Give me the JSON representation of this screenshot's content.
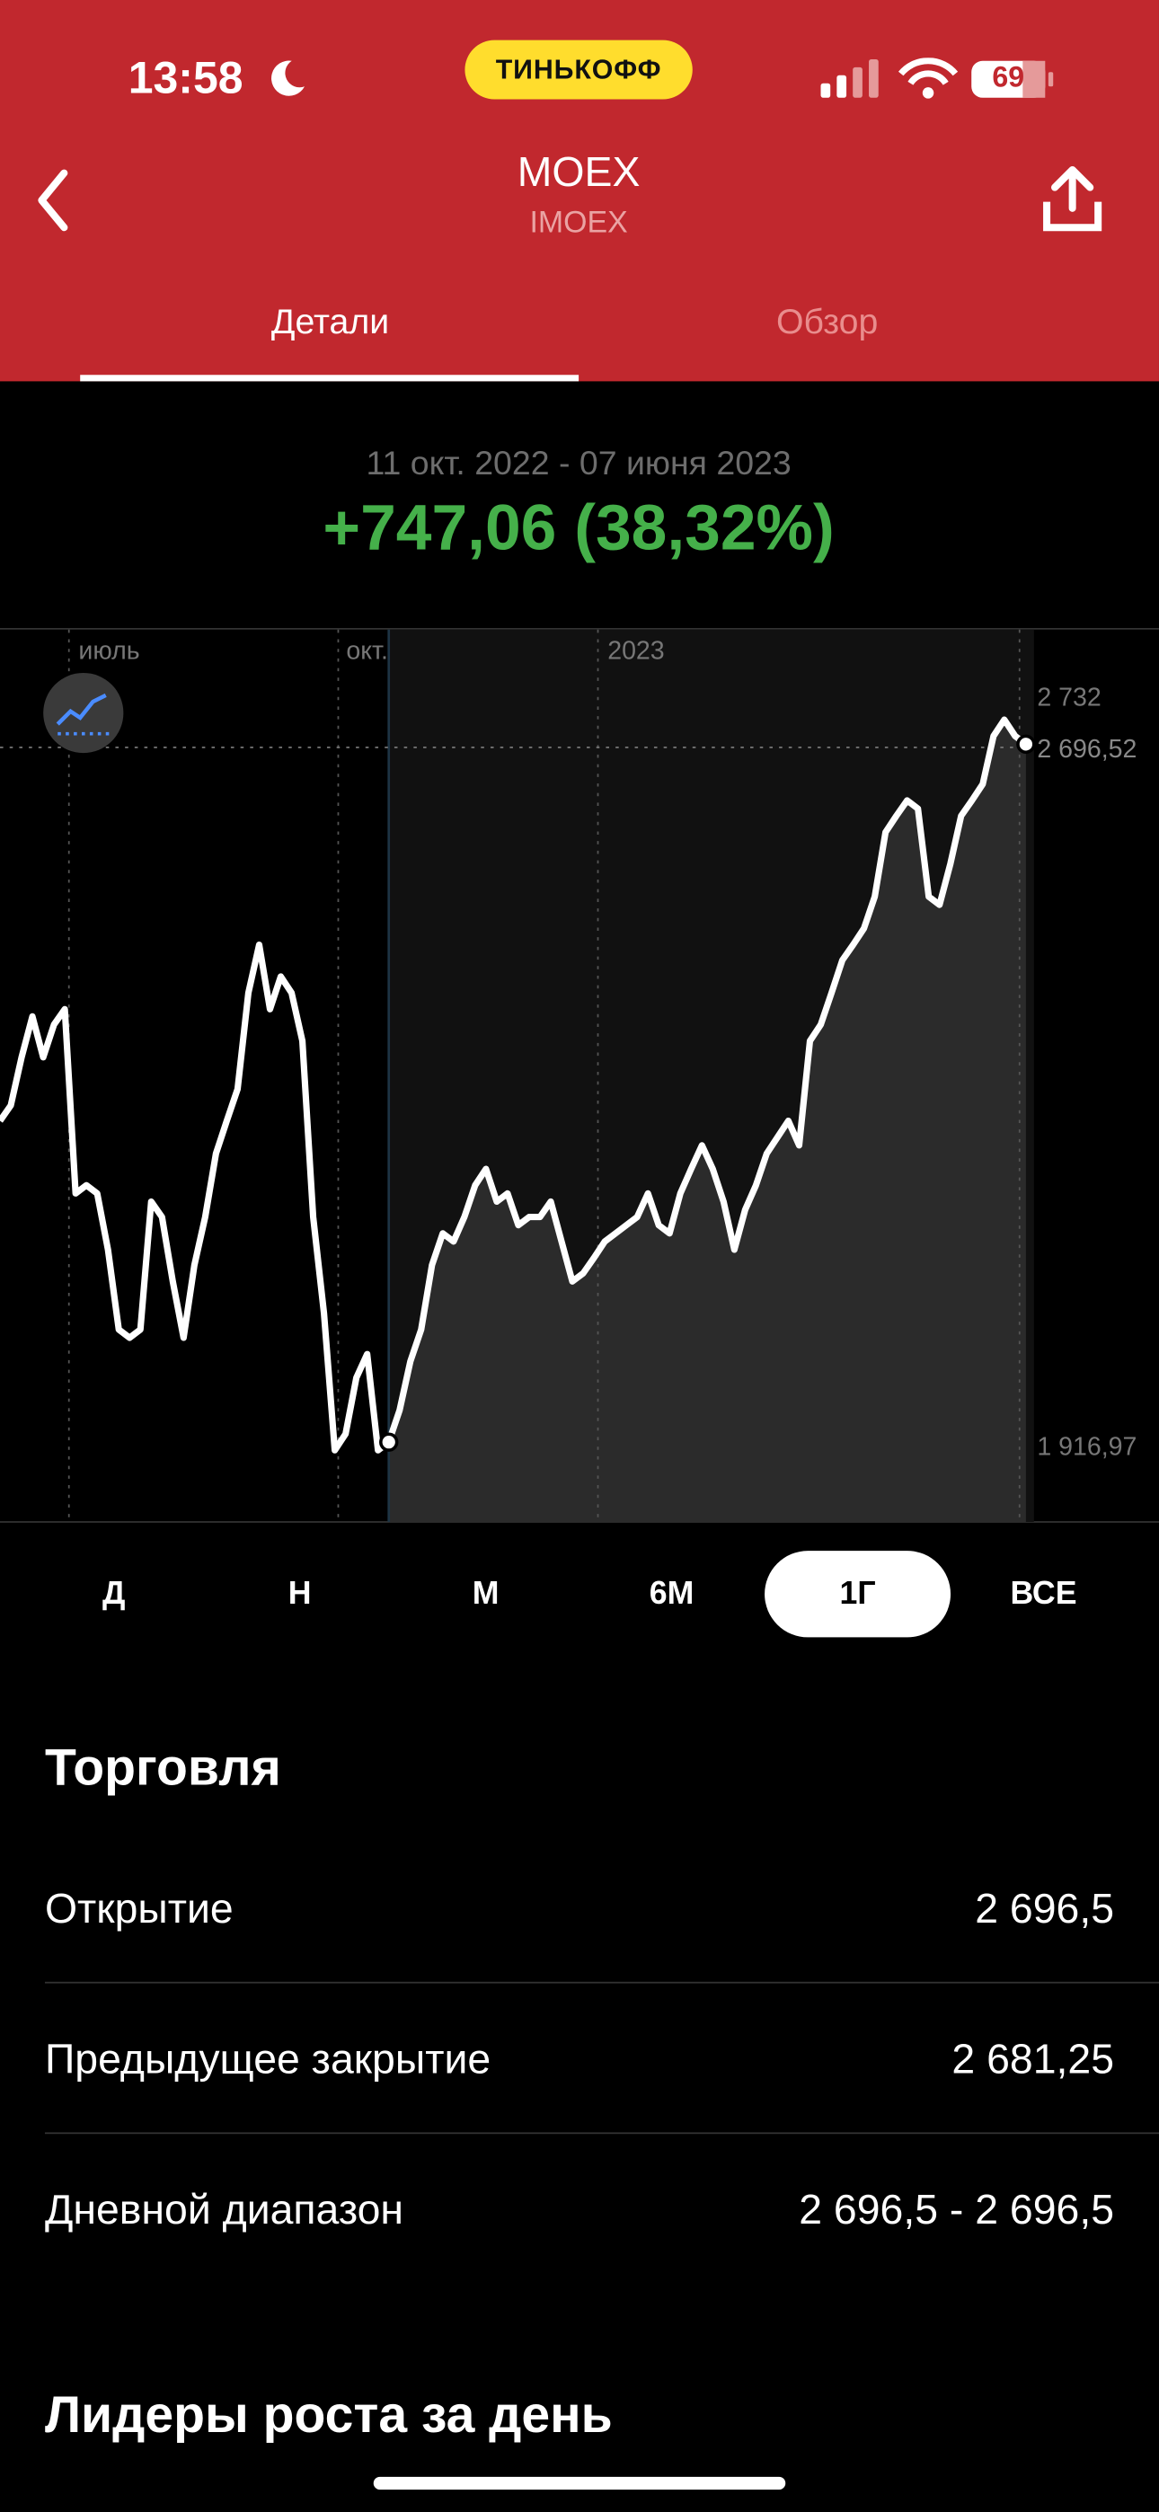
{
  "status_bar": {
    "time": "13:58",
    "brand": "ТИНЬКОФФ",
    "battery": "69"
  },
  "header": {
    "title": "MOEX",
    "subtitle": "IMOEX"
  },
  "tabs": [
    {
      "label": "Детали",
      "active": true
    },
    {
      "label": "Обзор",
      "active": false
    }
  ],
  "summary": {
    "period": "11 окт. 2022 - 07 июня 2023",
    "change": "+747,06 (38,32%)"
  },
  "chart_data": {
    "type": "line",
    "x_labels": [
      "июль",
      "окт.",
      "2023"
    ],
    "values": [
      2285,
      2302,
      2355,
      2400,
      2355,
      2391,
      2408,
      2205,
      2214,
      2205,
      2143,
      2055,
      2046,
      2055,
      2196,
      2179,
      2108,
      2046,
      2126,
      2179,
      2249,
      2285,
      2320,
      2426,
      2479,
      2408,
      2444,
      2426,
      2373,
      2179,
      2073,
      1922,
      1940,
      2002,
      2028,
      1922,
      1931,
      1966,
      2020,
      2055,
      2126,
      2161,
      2152,
      2179,
      2214,
      2232,
      2196,
      2205,
      2170,
      2179,
      2179,
      2196,
      2152,
      2108,
      2117,
      2134,
      2152,
      2161,
      2170,
      2179,
      2205,
      2170,
      2161,
      2205,
      2232,
      2258,
      2232,
      2196,
      2143,
      2187,
      2214,
      2249,
      2267,
      2285,
      2258,
      2373,
      2391,
      2426,
      2462,
      2479,
      2497,
      2532,
      2603,
      2621,
      2638,
      2629,
      2532,
      2523,
      2568,
      2621,
      2638,
      2656,
      2709,
      2727,
      2709,
      2700
    ],
    "color": "#ffffff",
    "ylim": [
      1843,
      2828
    ],
    "yticks": [
      {
        "value": 2732,
        "label": "2 732"
      },
      {
        "value": 1916.97,
        "label": "1 916,97"
      }
    ],
    "current": {
      "value": 2696.52,
      "label": "2 696,52"
    }
  },
  "range_buttons": [
    {
      "label": "Д",
      "selected": false
    },
    {
      "label": "Н",
      "selected": false
    },
    {
      "label": "М",
      "selected": false
    },
    {
      "label": "6М",
      "selected": false
    },
    {
      "label": "1Г",
      "selected": true
    },
    {
      "label": "ВСЕ",
      "selected": false
    }
  ],
  "trading": {
    "title": "Торговля",
    "rows": [
      {
        "label": "Открытие",
        "value": "2 696,5"
      },
      {
        "label": "Предыдущее закрытие",
        "value": "2 681,25"
      },
      {
        "label": "Дневной диапазон",
        "value": "2 696,5 - 2 696,5"
      }
    ]
  },
  "leaders": {
    "title": "Лидеры роста за день"
  }
}
